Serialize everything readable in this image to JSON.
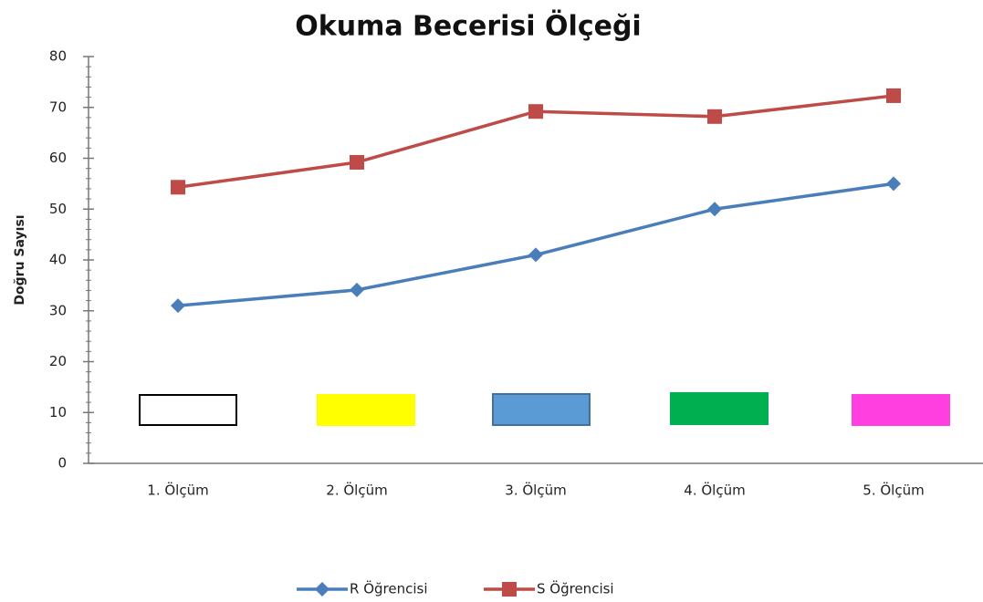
{
  "chart_data": {
    "type": "line",
    "title": "Okuma Becerisi Ölçeği",
    "y_label": "Doğru Sayısı",
    "categories": [
      "1. Ölçüm",
      "2. Ölçüm",
      "3. Ölçüm",
      "4. Ölçüm",
      "5. Ölçüm"
    ],
    "series": [
      {
        "name": "R Öğrencisi",
        "color": "#4a7ebb",
        "marker": "diamond",
        "values": [
          31,
          34.1,
          41,
          50,
          55
        ]
      },
      {
        "name": "S Öğrencisi",
        "color": "#be4b48",
        "marker": "square",
        "values": [
          54.3,
          59.2,
          69.2,
          68.2,
          72.3
        ]
      }
    ],
    "ylim": [
      0,
      80
    ],
    "yticks": [
      0,
      10,
      20,
      30,
      40,
      50,
      60,
      70,
      80
    ],
    "grid": false,
    "legend": "bottom"
  }
}
